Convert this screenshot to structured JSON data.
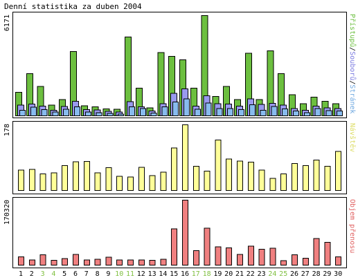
{
  "title": "Denní statistika za duben 2004",
  "colors": {
    "weekday_label": "#000000",
    "weekend_label": "#7FBF3F",
    "hits": "#6CBF3F",
    "files": "#9999EE",
    "pages": "#88BBEE",
    "visits": "#FFFF99",
    "volume": "#F08080",
    "label_hits": "#6CBF3F",
    "label_files": "#7A7AE0",
    "label_pages": "#6FA8E0",
    "label_visits": "#DDDD66",
    "label_volume": "#E06060"
  },
  "chart_data": [
    {
      "type": "bar",
      "panel": "top",
      "ymax_label": "6171",
      "ylim": [
        0,
        6171
      ],
      "categories": [
        "1",
        "2",
        "3",
        "4",
        "5",
        "6",
        "7",
        "8",
        "9",
        "10",
        "11",
        "12",
        "13",
        "14",
        "15",
        "16",
        "17",
        "18",
        "19",
        "20",
        "21",
        "22",
        "23",
        "24",
        "25",
        "26",
        "27",
        "28",
        "29",
        "30"
      ],
      "weekend": [
        "3",
        "4",
        "10",
        "11",
        "17",
        "18",
        "24",
        "25"
      ],
      "side_labels": [
        {
          "text": "Přístupů",
          "color_key": "label_hits"
        },
        {
          "text": "Souborů",
          "color_key": "label_files"
        },
        {
          "text": "Stránek",
          "color_key": "label_pages"
        }
      ],
      "separator": "/",
      "series": [
        {
          "name": "Přístupů",
          "color_key": "hits",
          "values": [
            1450,
            2600,
            1800,
            650,
            1000,
            3950,
            620,
            550,
            420,
            400,
            4850,
            1700,
            500,
            3900,
            3650,
            3450,
            1700,
            6171,
            1200,
            1800,
            1000,
            3850,
            1000,
            4000,
            2600,
            1300,
            740,
            1150,
            900,
            750
          ]
        },
        {
          "name": "Souborů",
          "color_key": "files",
          "values": [
            650,
            720,
            600,
            350,
            580,
            900,
            380,
            370,
            280,
            230,
            880,
            550,
            300,
            750,
            1380,
            1650,
            590,
            1240,
            750,
            730,
            600,
            1050,
            700,
            760,
            650,
            450,
            340,
            600,
            500,
            450
          ]
        },
        {
          "name": "Stránek",
          "color_key": "pages",
          "values": [
            350,
            530,
            380,
            240,
            400,
            560,
            240,
            200,
            140,
            110,
            560,
            450,
            180,
            560,
            850,
            1050,
            400,
            780,
            440,
            440,
            390,
            680,
            340,
            580,
            420,
            300,
            200,
            450,
            310,
            290
          ]
        }
      ]
    },
    {
      "type": "bar",
      "panel": "middle",
      "ymax_label": "178",
      "ylim": [
        0,
        178
      ],
      "categories": [
        "1",
        "2",
        "3",
        "4",
        "5",
        "6",
        "7",
        "8",
        "9",
        "10",
        "11",
        "12",
        "13",
        "14",
        "15",
        "16",
        "17",
        "18",
        "19",
        "20",
        "21",
        "22",
        "23",
        "24",
        "25",
        "26",
        "27",
        "28",
        "29",
        "30"
      ],
      "side_labels": [
        {
          "text": "Návštěv",
          "color_key": "label_visits"
        }
      ],
      "series": [
        {
          "name": "Návštěv",
          "color_key": "visits",
          "values": [
            55,
            57,
            45,
            48,
            67,
            78,
            79,
            48,
            62,
            38,
            37,
            63,
            40,
            50,
            115,
            178,
            66,
            52,
            137,
            85,
            80,
            77,
            55,
            33,
            45,
            73,
            67,
            82,
            66,
            106
          ]
        }
      ]
    },
    {
      "type": "bar",
      "panel": "bottom",
      "ymax_label": "170320",
      "ylim": [
        0,
        170320
      ],
      "categories": [
        "1",
        "2",
        "3",
        "4",
        "5",
        "6",
        "7",
        "8",
        "9",
        "10",
        "11",
        "12",
        "13",
        "14",
        "15",
        "16",
        "17",
        "18",
        "19",
        "20",
        "21",
        "22",
        "23",
        "24",
        "25",
        "26",
        "27",
        "28",
        "29",
        "30"
      ],
      "side_labels": [
        {
          "text": "Objem přenosu",
          "color_key": "label_volume"
        }
      ],
      "series": [
        {
          "name": "Objem přenosu",
          "color_key": "volume",
          "values": [
            22000,
            14000,
            27000,
            13000,
            17000,
            28000,
            14000,
            15000,
            21000,
            14000,
            14000,
            14000,
            13000,
            15000,
            95000,
            170320,
            38000,
            97000,
            48000,
            45000,
            28000,
            50000,
            42000,
            44000,
            12000,
            27000,
            18000,
            70000,
            60000,
            22000
          ]
        }
      ]
    }
  ]
}
